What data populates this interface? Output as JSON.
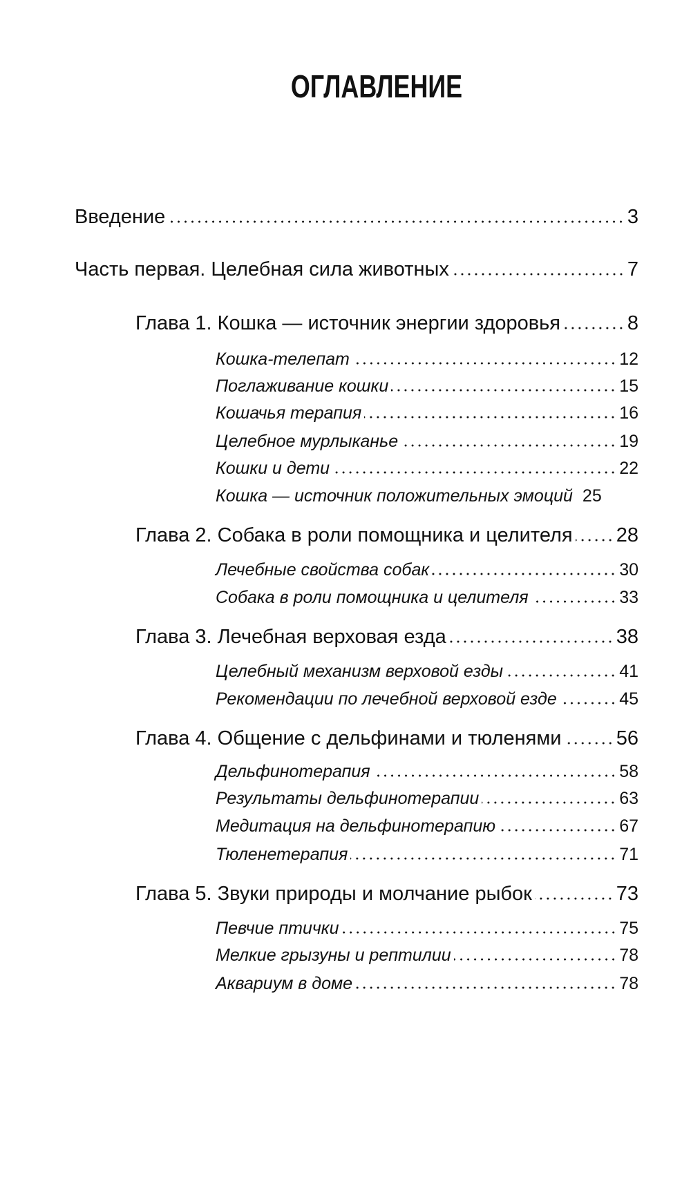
{
  "title": "ОГЛАВЛЕНИЕ",
  "entries": [
    {
      "label": "Введение",
      "page": "3"
    },
    {
      "label": "Часть первая. Целебная сила животных",
      "page": "7"
    },
    {
      "label": "Глава 1. Кошка — источник энергии здоровья",
      "page": "8"
    },
    {
      "label": "Кошка-телепат",
      "page": "12"
    },
    {
      "label": "Поглаживание кошки",
      "page": "15"
    },
    {
      "label": "Кошачья терапия",
      "page": "16"
    },
    {
      "label": "Целебное мурлыканье",
      "page": "19"
    },
    {
      "label": "Кошки и дети",
      "page": "22"
    },
    {
      "label": "Кошка — источник положительных эмоций",
      "page": "25"
    },
    {
      "label": "Глава 2. Собака в роли помощника и целителя",
      "page": "28"
    },
    {
      "label": "Лечебные свойства собак",
      "page": "30"
    },
    {
      "label": "Собака в роли помощника и целителя",
      "page": "33"
    },
    {
      "label": "Глава 3. Лечебная верховая езда",
      "page": "38"
    },
    {
      "label": "Целебный механизм верховой езды",
      "page": "41"
    },
    {
      "label": "Рекомендации по лечебной верховой езде",
      "page": "45"
    },
    {
      "label": "Глава 4. Общение с дельфинами и тюленями",
      "page": "56"
    },
    {
      "label": "Дельфинотерапия",
      "page": "58"
    },
    {
      "label": "Результаты дельфинотерапии",
      "page": "63"
    },
    {
      "label": "Медитация на дельфинотерапию",
      "page": "67"
    },
    {
      "label": "Тюленетерапия",
      "page": "71"
    },
    {
      "label": "Глава 5. Звуки природы и молчание рыбок",
      "page": "73"
    },
    {
      "label": "Певчие птички",
      "page": "75"
    },
    {
      "label": "Мелкие грызуны и рептилии",
      "page": "78"
    },
    {
      "label": "Аквариум в доме",
      "page": "78"
    }
  ]
}
